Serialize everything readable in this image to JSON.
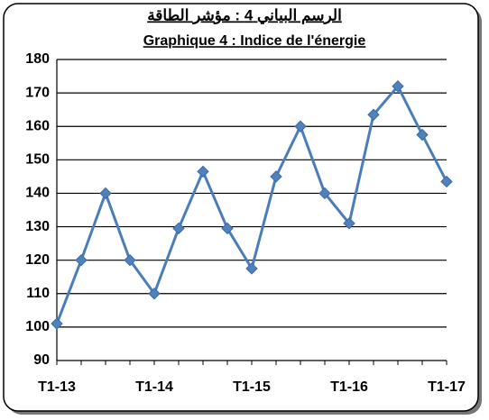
{
  "chart_data": {
    "type": "line",
    "title": "الرسم البياني 4 : مؤشر الطاقة",
    "subtitle": "Graphique 4 : Indice de l'énergie",
    "categories": [
      "T1-13",
      null,
      null,
      null,
      "T1-14",
      null,
      null,
      null,
      "T1-15",
      null,
      null,
      null,
      "T1-16",
      null,
      null,
      null,
      "T1-17"
    ],
    "series": [
      {
        "name": "Indice de l'énergie",
        "color": "#4a7ebb",
        "values": [
          101,
          120,
          140,
          120,
          110,
          129.5,
          146.5,
          129.5,
          117.5,
          145,
          160,
          140,
          131,
          163.5,
          172,
          157.5,
          143.5
        ]
      }
    ],
    "ylim": [
      90,
      180
    ],
    "yticks": [
      90,
      100,
      110,
      120,
      130,
      140,
      150,
      160,
      170,
      180
    ],
    "grid": true
  }
}
